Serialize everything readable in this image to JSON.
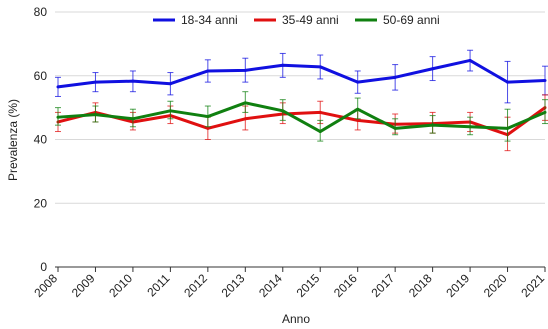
{
  "chart_data": {
    "type": "line",
    "title": "",
    "xlabel": "Anno",
    "ylabel": "Prevalenza (%)",
    "ylim": [
      0,
      80
    ],
    "yticks": [
      0,
      20,
      40,
      60,
      80
    ],
    "x": [
      "2008",
      "2009",
      "2010",
      "2011",
      "2012",
      "2013",
      "2014",
      "2015",
      "2016",
      "2017",
      "2018",
      "2019",
      "2020",
      "2021"
    ],
    "grid": "horizontal",
    "legend_position": "top-right",
    "series": [
      {
        "name": "18-34 anni",
        "color": "#1010e0",
        "values": [
          56.5,
          58.0,
          58.3,
          57.5,
          61.5,
          61.7,
          63.3,
          62.8,
          58.0,
          59.5,
          62.2,
          64.8,
          58.0,
          58.5
        ],
        "lower": [
          53.5,
          55.0,
          55.0,
          54.0,
          58.0,
          58.0,
          59.5,
          59.0,
          54.5,
          55.5,
          58.5,
          61.5,
          51.5,
          54.0
        ],
        "upper": [
          59.5,
          61.0,
          61.5,
          61.0,
          65.0,
          65.5,
          67.0,
          66.5,
          61.5,
          63.5,
          66.0,
          68.0,
          64.5,
          63.0
        ]
      },
      {
        "name": "35-49 anni",
        "color": "#e01010",
        "values": [
          45.5,
          48.5,
          45.5,
          47.5,
          43.5,
          46.5,
          48.0,
          48.5,
          46.0,
          44.8,
          45.0,
          45.5,
          41.5,
          50.0
        ],
        "lower": [
          42.5,
          45.5,
          43.0,
          45.0,
          40.0,
          43.0,
          45.0,
          45.0,
          43.0,
          42.0,
          42.0,
          42.5,
          36.5,
          46.0
        ],
        "upper": [
          48.5,
          51.5,
          48.5,
          50.5,
          47.0,
          50.5,
          51.5,
          52.0,
          49.5,
          48.0,
          48.5,
          48.5,
          47.0,
          54.0
        ]
      },
      {
        "name": "50-69 anni",
        "color": "#108010",
        "values": [
          47.0,
          47.8,
          46.5,
          49.0,
          47.2,
          51.5,
          49.0,
          42.5,
          49.5,
          43.5,
          44.5,
          44.0,
          43.5,
          48.5
        ],
        "lower": [
          44.5,
          45.5,
          44.0,
          46.5,
          44.0,
          48.5,
          46.0,
          39.5,
          46.5,
          41.5,
          42.0,
          41.5,
          39.5,
          45.0
        ],
        "upper": [
          50.0,
          50.5,
          49.5,
          52.0,
          50.5,
          55.0,
          52.5,
          46.0,
          53.0,
          46.5,
          47.5,
          47.0,
          49.5,
          52.5
        ]
      }
    ]
  }
}
